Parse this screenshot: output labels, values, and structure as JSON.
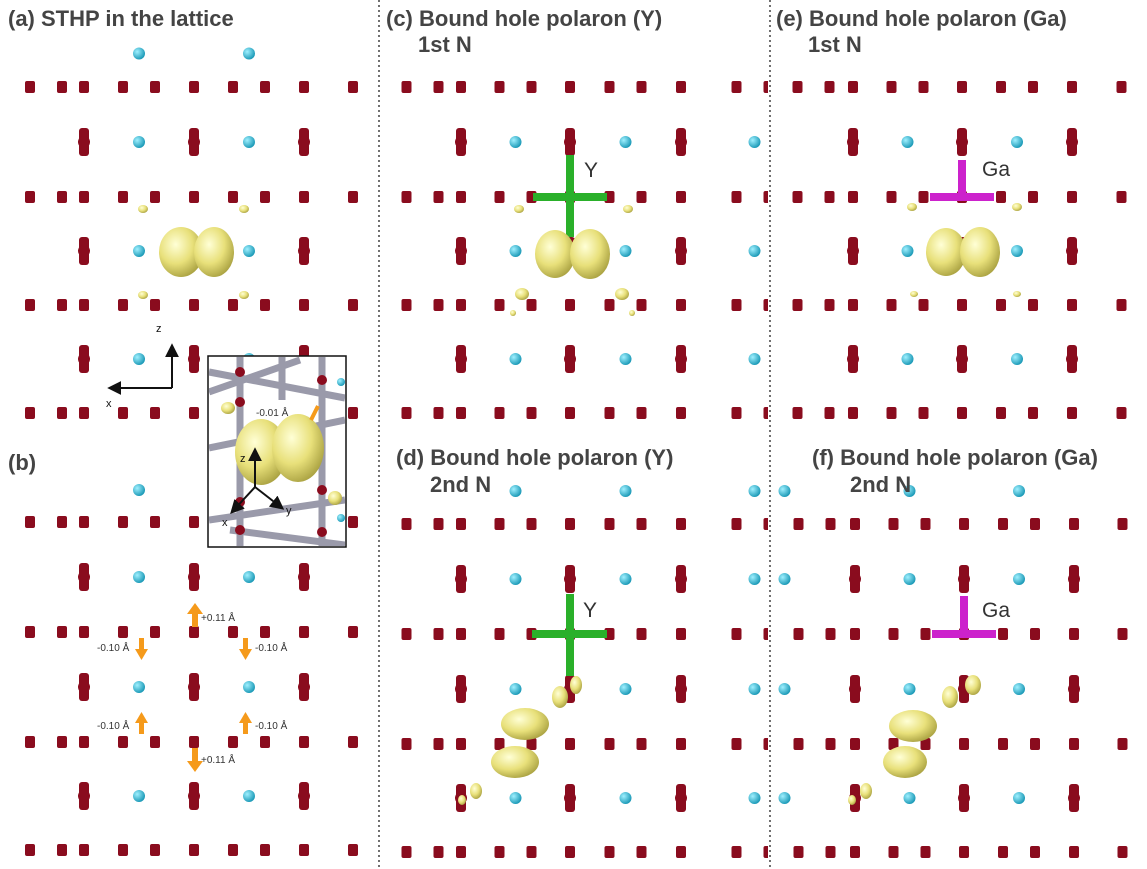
{
  "panels": {
    "a": {
      "title": "(a) STHP in the lattice"
    },
    "b": {
      "title": "(b)"
    },
    "c": {
      "title_line1": "(c) Bound hole polaron (Y)",
      "title_line2": "1st N",
      "dopant": "Y"
    },
    "d": {
      "title_line1": "(d) Bound hole polaron (Y)",
      "title_line2": "2nd N",
      "dopant": "Y"
    },
    "e": {
      "title_line1": "(e) Bound hole polaron (Ga)",
      "title_line2": "1st N",
      "dopant": "Ga"
    },
    "f": {
      "title_line1": "(f) Bound hole polaron (Ga)",
      "title_line2": "2nd N",
      "dopant": "Ga"
    }
  },
  "axes_main": {
    "vertical": "z",
    "horizontal": "x"
  },
  "inset": {
    "displacement": "-0.01 Å",
    "axes": {
      "vertical": "z",
      "horizontal": "y",
      "depth": "x"
    }
  },
  "displacements_b": {
    "top_center": "+0.11 Å",
    "upper_left": "-0.10 Å",
    "upper_right": "-0.10 Å",
    "lower_left": "-0.10 Å",
    "lower_right": "-0.10 Å",
    "bottom_center": "+0.11 Å"
  },
  "colors": {
    "bond": "#9a9aaa",
    "nitrogen": "#8a0c1e",
    "metal_atom": "#22b4d0",
    "isosurface": "#eeee8a",
    "y_dopant": "#2ab02a",
    "ga_dopant": "#cc22cc",
    "arrow": "#f59a1b",
    "title_text": "#444444"
  }
}
